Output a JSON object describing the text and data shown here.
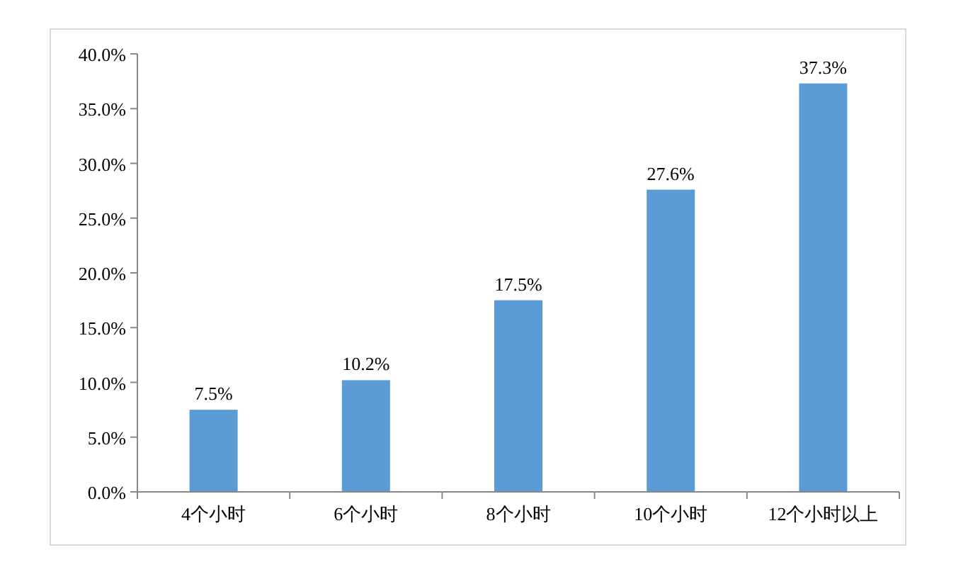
{
  "chart_data": {
    "type": "bar",
    "categories": [
      "4个小时",
      "6个小时",
      "8个小时",
      "10个小时",
      "12个小时以上"
    ],
    "values": [
      7.5,
      10.2,
      17.5,
      27.6,
      37.3
    ],
    "value_labels": [
      "7.5%",
      "10.2%",
      "17.5%",
      "27.6%",
      "37.3%"
    ],
    "color": "#5b9bd5",
    "ylim": [
      0,
      40
    ],
    "yticks": [
      {
        "value": 0,
        "label": "0.0%"
      },
      {
        "value": 5,
        "label": "5.0%"
      },
      {
        "value": 10,
        "label": "10.0%"
      },
      {
        "value": 15,
        "label": "15.0%"
      },
      {
        "value": 20,
        "label": "20.0%"
      },
      {
        "value": 25,
        "label": "25.0%"
      },
      {
        "value": 30,
        "label": "30.0%"
      },
      {
        "value": 35,
        "label": "35.0%"
      },
      {
        "value": 40,
        "label": "40.0%"
      }
    ],
    "grid": false
  }
}
